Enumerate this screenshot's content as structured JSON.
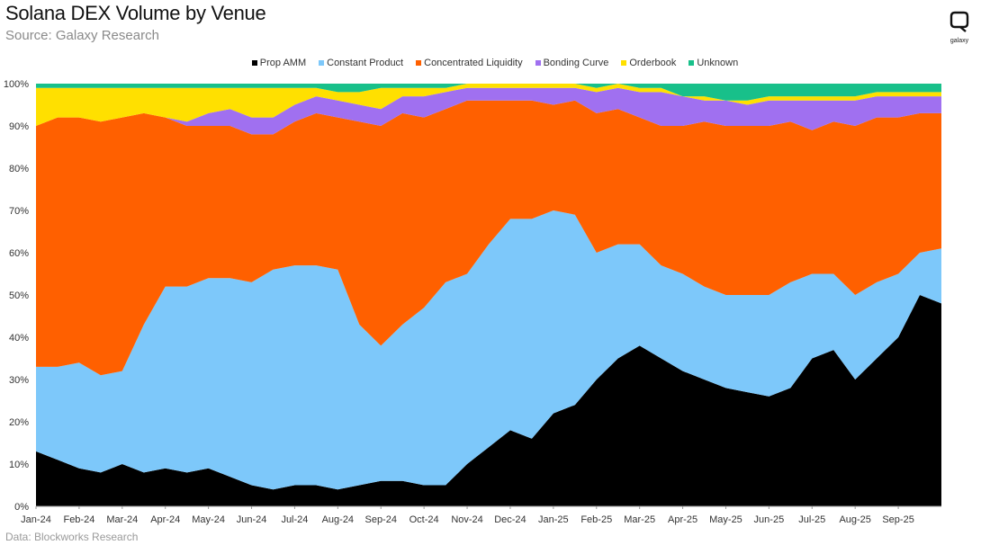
{
  "header": {
    "title": "Solana DEX Volume by Venue",
    "subtitle": "Source: Galaxy Research"
  },
  "logo": {
    "name": "galaxy-logo",
    "text": "galaxy"
  },
  "footer": {
    "text": "Data: Blockworks Research"
  },
  "colors": {
    "Prop AMM": "#000000",
    "Constant Product": "#7dc8fa",
    "Concentrated Liquidity": "#ff6000",
    "Bonding Curve": "#a070f0",
    "Orderbook": "#ffe000",
    "Unknown": "#18c08a"
  },
  "chart_data": {
    "type": "area",
    "stacked": true,
    "title": "Solana DEX Volume by Venue",
    "subtitle": "Source: Galaxy Research",
    "xlabel": "",
    "ylabel": "",
    "ylim": [
      0,
      100
    ],
    "y_unit": "%",
    "y_ticks": [
      "0%",
      "10%",
      "20%",
      "30%",
      "40%",
      "50%",
      "60%",
      "70%",
      "80%",
      "90%",
      "100%"
    ],
    "x_ticks": [
      "Jan-24",
      "Feb-24",
      "Mar-24",
      "Apr-24",
      "May-24",
      "Jun-24",
      "Jul-24",
      "Aug-24",
      "Sep-24",
      "Oct-24",
      "Nov-24",
      "Dec-24",
      "Jan-25",
      "Feb-25",
      "Mar-25",
      "Apr-25",
      "May-25",
      "Jun-25",
      "Jul-25",
      "Aug-25",
      "Sep-25"
    ],
    "legend_position": "top-center",
    "grid": false,
    "x": [
      "2024-01-01",
      "2024-01-15",
      "2024-02-01",
      "2024-02-15",
      "2024-03-01",
      "2024-03-15",
      "2024-04-01",
      "2024-04-15",
      "2024-05-01",
      "2024-05-15",
      "2024-06-01",
      "2024-06-15",
      "2024-07-01",
      "2024-07-15",
      "2024-08-01",
      "2024-08-15",
      "2024-09-01",
      "2024-09-15",
      "2024-10-01",
      "2024-10-15",
      "2024-11-01",
      "2024-11-15",
      "2024-12-01",
      "2024-12-15",
      "2025-01-01",
      "2025-01-15",
      "2025-02-01",
      "2025-02-15",
      "2025-03-01",
      "2025-03-15",
      "2025-04-01",
      "2025-04-15",
      "2025-05-01",
      "2025-05-15",
      "2025-06-01",
      "2025-06-15",
      "2025-07-01",
      "2025-07-15",
      "2025-08-01",
      "2025-08-15",
      "2025-09-01",
      "2025-09-15",
      "2025-09-30"
    ],
    "series": [
      {
        "name": "Prop AMM",
        "values": [
          13,
          11,
          9,
          8,
          10,
          8,
          9,
          8,
          9,
          7,
          5,
          4,
          5,
          5,
          4,
          5,
          6,
          6,
          5,
          5,
          10,
          14,
          18,
          16,
          22,
          24,
          30,
          35,
          38,
          35,
          32,
          30,
          28,
          27,
          26,
          28,
          35,
          37,
          30,
          35,
          40,
          50,
          48
        ]
      },
      {
        "name": "Constant Product",
        "values": [
          20,
          22,
          25,
          23,
          22,
          35,
          43,
          44,
          45,
          47,
          48,
          52,
          52,
          52,
          52,
          38,
          32,
          37,
          42,
          48,
          45,
          48,
          50,
          52,
          48,
          45,
          30,
          27,
          24,
          22,
          23,
          22,
          22,
          23,
          24,
          25,
          20,
          18,
          20,
          18,
          15,
          10,
          13
        ]
      },
      {
        "name": "Concentrated Liquidity",
        "values": [
          57,
          59,
          58,
          60,
          60,
          50,
          40,
          38,
          36,
          36,
          35,
          32,
          34,
          36,
          36,
          48,
          52,
          50,
          45,
          41,
          41,
          34,
          28,
          28,
          25,
          27,
          33,
          32,
          30,
          33,
          35,
          39,
          40,
          40,
          40,
          38,
          34,
          36,
          40,
          39,
          37,
          33,
          32
        ]
      },
      {
        "name": "Bonding Curve",
        "values": [
          0,
          0,
          0,
          0,
          0,
          0,
          0,
          1,
          3,
          4,
          4,
          4,
          4,
          4,
          4,
          4,
          4,
          4,
          5,
          4,
          3,
          3,
          3,
          3,
          4,
          3,
          5,
          5,
          6,
          8,
          7,
          5,
          6,
          5,
          6,
          5,
          7,
          5,
          6,
          5,
          5,
          4,
          4
        ]
      },
      {
        "name": "Orderbook",
        "values": [
          9,
          7,
          7,
          8,
          7,
          6,
          7,
          8,
          6,
          5,
          7,
          7,
          4,
          2,
          2,
          3,
          5,
          2,
          2,
          1,
          1,
          1,
          1,
          1,
          1,
          1,
          1,
          1,
          1,
          1,
          0,
          1,
          0,
          1,
          1,
          1,
          1,
          1,
          1,
          1,
          1,
          1,
          1
        ]
      },
      {
        "name": "Unknown",
        "values": [
          1,
          1,
          1,
          1,
          1,
          1,
          1,
          1,
          1,
          1,
          1,
          1,
          1,
          1,
          2,
          2,
          1,
          1,
          1,
          1,
          0,
          0,
          0,
          0,
          0,
          0,
          1,
          0,
          1,
          1,
          3,
          3,
          4,
          4,
          3,
          3,
          3,
          3,
          3,
          2,
          2,
          2,
          2
        ]
      }
    ]
  }
}
